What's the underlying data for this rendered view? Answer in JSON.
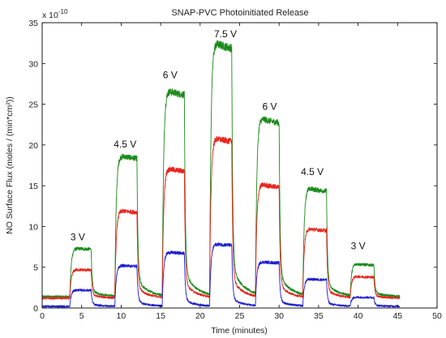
{
  "chart_data": {
    "type": "line",
    "title": "SNAP-PVC Photoinitiated Release",
    "xlabel": "Time (minutes)",
    "ylabel": "NO Surface Flux (moles / (min*cm²))",
    "y_multiplier": "x 10",
    "y_exponent": "-10",
    "xlim": [
      0,
      50
    ],
    "ylim": [
      0,
      35
    ],
    "x_ticks": [
      "0",
      "5",
      "10",
      "15",
      "20",
      "25",
      "30",
      "35",
      "40",
      "45",
      "50"
    ],
    "y_ticks": [
      "0",
      "5",
      "10",
      "15",
      "20",
      "25",
      "30",
      "35"
    ],
    "grid": false,
    "pulses": [
      {
        "label": "3 V",
        "on": 3.5,
        "off": 6.2,
        "label_x": 4.5,
        "label_y": 8.3
      },
      {
        "label": "4.5 V",
        "on": 9.2,
        "off": 12.0,
        "label_x": 10.5,
        "label_y": 19.7
      },
      {
        "label": "6 V",
        "on": 15.2,
        "off": 18.0,
        "label_x": 16.2,
        "label_y": 28.2
      },
      {
        "label": "7.5 V",
        "on": 21.2,
        "off": 24.0,
        "label_x": 23.2,
        "label_y": 33.2
      },
      {
        "label": "6 V",
        "on": 27.0,
        "off": 30.0,
        "label_x": 28.8,
        "label_y": 24.3
      },
      {
        "label": "4.5 V",
        "on": 33.0,
        "off": 36.0,
        "label_x": 34.2,
        "label_y": 16.3
      },
      {
        "label": "3 V",
        "on": 39.0,
        "off": 42.0,
        "label_x": 40.0,
        "label_y": 7.2
      }
    ],
    "series": [
      {
        "color": "#1a8a1a",
        "baseline": 1.4,
        "plateaus": [
          7.3,
          18.6,
          26.5,
          32.3,
          23.0,
          14.5,
          5.3
        ]
      },
      {
        "color": "#e8231d",
        "baseline": 1.2,
        "plateaus": [
          4.7,
          11.9,
          17.0,
          20.7,
          15.0,
          9.6,
          3.8
        ]
      },
      {
        "color": "#1d1dd0",
        "baseline": 0.2,
        "plateaus": [
          2.2,
          5.2,
          6.8,
          7.8,
          5.6,
          3.5,
          1.3
        ]
      }
    ]
  }
}
